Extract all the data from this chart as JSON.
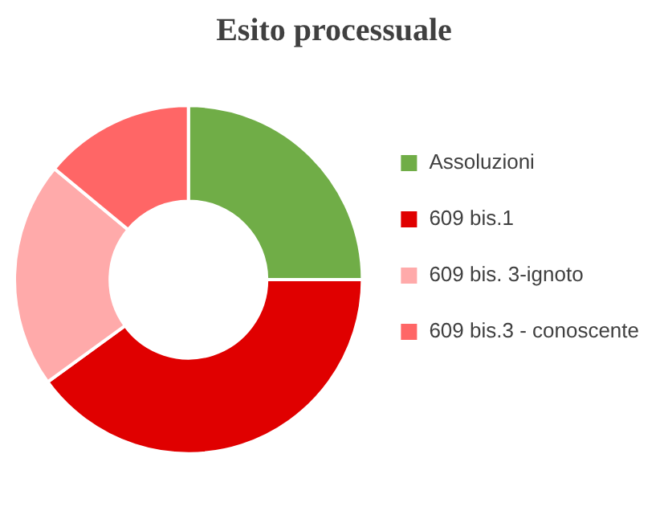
{
  "chart_data": {
    "type": "donut",
    "title": "Esito processuale",
    "categories": [
      "Assoluzioni",
      "609 bis.1",
      "609 bis. 3-ignoto",
      "609 bis.3 - conoscente"
    ],
    "values": [
      25,
      40,
      21,
      14
    ],
    "colors": [
      "#70ad47",
      "#e00000",
      "#ffaaaa",
      "#ff6666"
    ],
    "legend": "right"
  }
}
